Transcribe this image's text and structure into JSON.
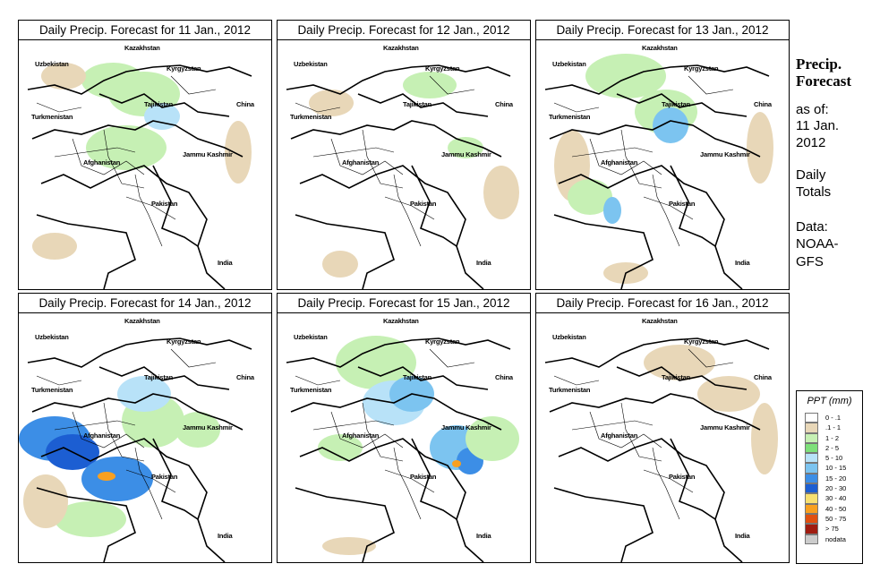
{
  "panels": [
    {
      "title": "Daily Precip. Forecast for  11 Jan., 2012",
      "labels": {
        "kazakhstan": "Kazakhstan",
        "uzbekistan": "Uzbekistan",
        "kyrgyzstan": "Kyrgyzstan",
        "tajikistan": "Tajikistan",
        "china": "China",
        "turkmenistan": "Turkmenistan",
        "afghanistan": "Afghanistan",
        "jammu": "Jammu Kashmir",
        "pakistan": "Pakistan",
        "india": "India"
      }
    },
    {
      "title": "Daily Precip. Forecast for  12 Jan., 2012",
      "labels": {
        "kazakhstan": "Kazakhstan",
        "uzbekistan": "Uzbekistan",
        "kyrgyzstan": "Kyrgyzstan",
        "tajikistan": "Tajikistan",
        "china": "China",
        "turkmenistan": "Turkmenistan",
        "afghanistan": "Afghanistan",
        "jammu": "Jammu Kashmir",
        "pakistan": "Pakistan",
        "india": "India"
      }
    },
    {
      "title": "Daily Precip. Forecast for  13 Jan., 2012",
      "labels": {
        "kazakhstan": "Kazakhstan",
        "uzbekistan": "Uzbekistan",
        "kyrgyzstan": "Kyrgyzstan",
        "tajikistan": "Tajikistan",
        "china": "China",
        "turkmenistan": "Turkmenistan",
        "afghanistan": "Afghanistan",
        "jammu": "Jammu Kashmir",
        "pakistan": "Pakistan",
        "india": "India"
      }
    },
    {
      "title": "Daily Precip. Forecast for  14 Jan., 2012",
      "labels": {
        "kazakhstan": "Kazakhstan",
        "uzbekistan": "Uzbekistan",
        "kyrgyzstan": "Kyrgyzstan",
        "tajikistan": "Tajikistan",
        "china": "China",
        "turkmenistan": "Turkmenistan",
        "afghanistan": "Afghanistan",
        "jammu": "Jammu Kashmir",
        "pakistan": "Pakistan",
        "india": "India"
      }
    },
    {
      "title": "Daily Precip. Forecast for  15 Jan., 2012",
      "labels": {
        "kazakhstan": "Kazakhstan",
        "uzbekistan": "Uzbekistan",
        "kyrgyzstan": "Kyrgyzstan",
        "tajikistan": "Tajikistan",
        "china": "China",
        "turkmenistan": "Turkmenistan",
        "afghanistan": "Afghanistan",
        "jammu": "Jammu Kashmir",
        "pakistan": "Pakistan",
        "india": "India"
      }
    },
    {
      "title": "Daily Precip. Forecast for  16 Jan., 2012",
      "labels": {
        "kazakhstan": "Kazakhstan",
        "uzbekistan": "Uzbekistan",
        "kyrgyzstan": "Kyrgyzstan",
        "tajikistan": "Tajikistan",
        "china": "China",
        "turkmenistan": "Turkmenistan",
        "afghanistan": "Afghanistan",
        "jammu": "Jammu Kashmir",
        "pakistan": "Pakistan",
        "india": "India"
      }
    }
  ],
  "side": {
    "title": "Precip. Forecast",
    "as_of_label": "as of:",
    "date_line1": "11 Jan.",
    "date_line2": "2012",
    "totals_line1": "Daily",
    "totals_line2": "Totals",
    "data_line1": "Data:",
    "data_line2": "NOAA-",
    "data_line3": "GFS"
  },
  "legend": {
    "title": "PPT (mm)",
    "items": [
      {
        "label": "0 - .1",
        "color": "#ffffff"
      },
      {
        "label": ".1 - 1",
        "color": "#e8d7b8"
      },
      {
        "label": "1 - 2",
        "color": "#c6f0b4"
      },
      {
        "label": "2 - 5",
        "color": "#7ee07a"
      },
      {
        "label": "5 - 10",
        "color": "#b8e2f8"
      },
      {
        "label": "10 - 15",
        "color": "#7cc4f0"
      },
      {
        "label": "15 - 20",
        "color": "#3c8ee6"
      },
      {
        "label": "20 - 30",
        "color": "#1c5ed2"
      },
      {
        "label": "30 - 40",
        "color": "#f8e070"
      },
      {
        "label": "40 - 50",
        "color": "#f8a020"
      },
      {
        "label": "50 - 75",
        "color": "#e05010"
      },
      {
        "label": "> 75",
        "color": "#a01c10"
      },
      {
        "label": "nodata",
        "color": "#cccccc"
      }
    ]
  }
}
